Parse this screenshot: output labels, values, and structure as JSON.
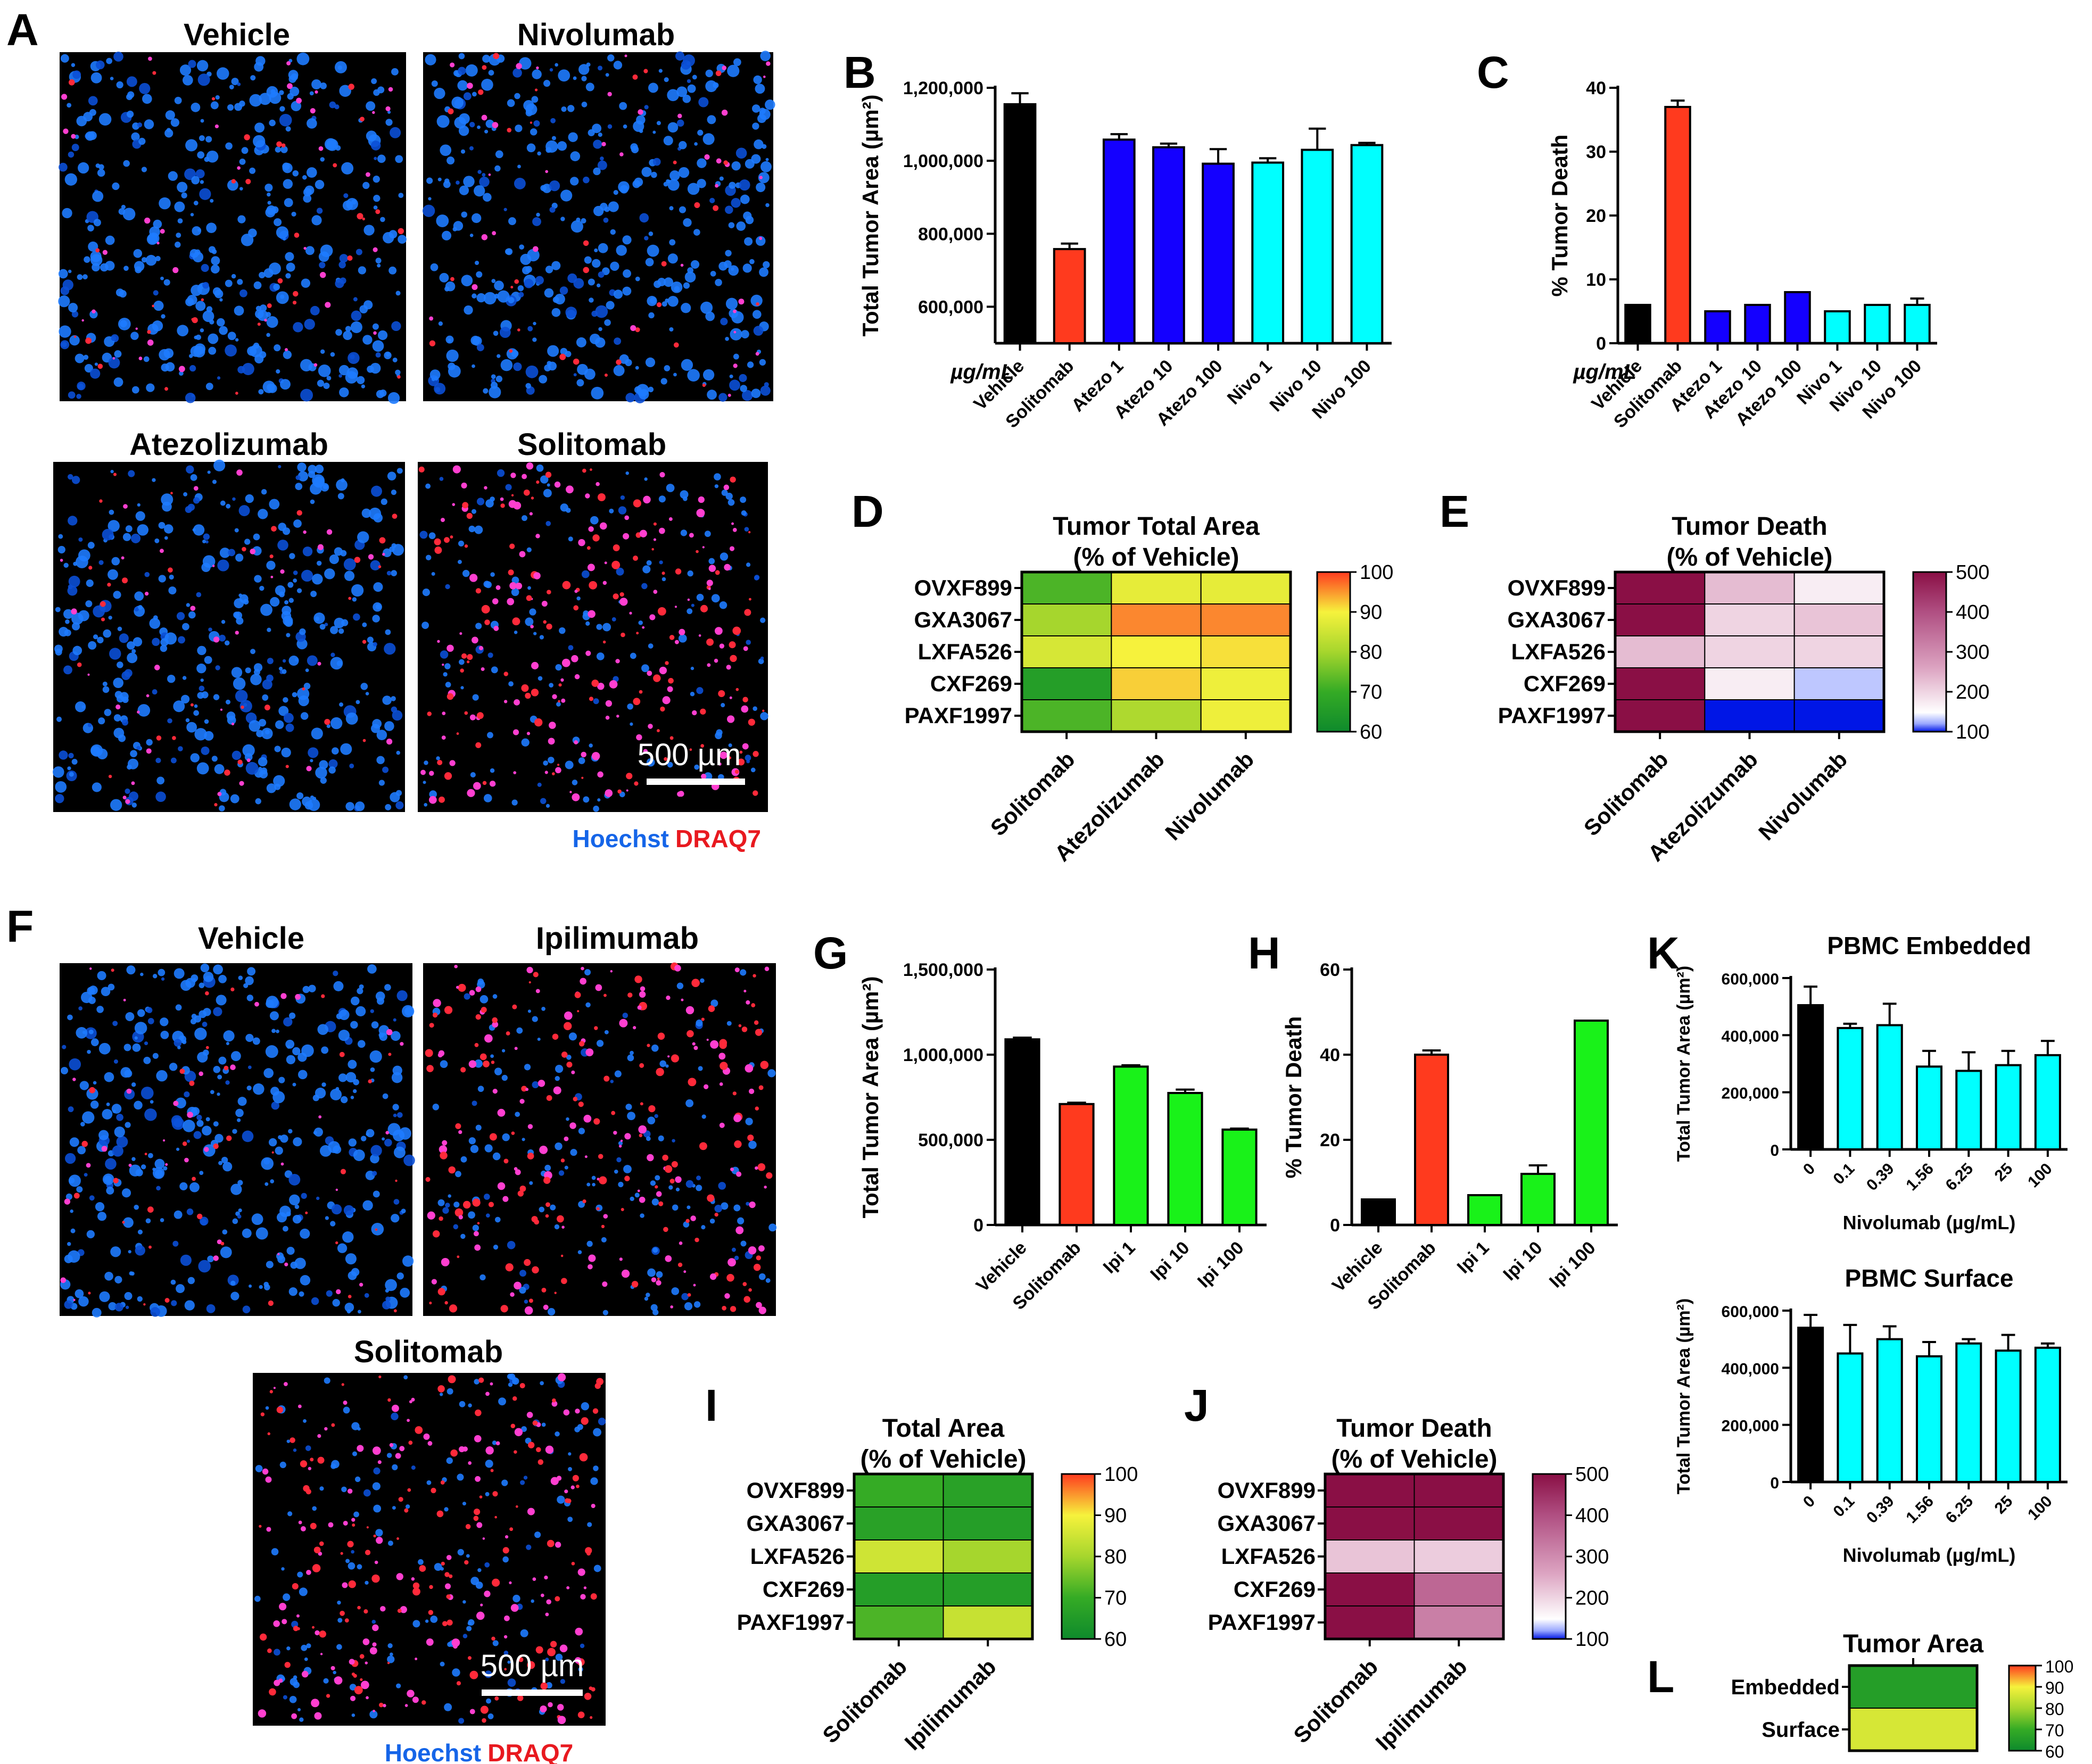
{
  "panel_labels": {
    "A": "A",
    "B": "B",
    "C": "C",
    "D": "D",
    "E": "E",
    "F": "F",
    "G": "G",
    "H": "H",
    "I": "I",
    "J": "J",
    "K": "K",
    "L": "L"
  },
  "images": {
    "a": [
      {
        "title": "Vehicle",
        "density": "low"
      },
      {
        "title": "Nivolumab",
        "density": "low"
      },
      {
        "title": "Atezolizumab",
        "density": "low"
      },
      {
        "title": "Solitomab",
        "density": "high"
      }
    ],
    "f": [
      {
        "title": "Vehicle",
        "density": "low"
      },
      {
        "title": "Ipilimumab",
        "density": "high"
      },
      {
        "title": "Solitomab",
        "density": "high"
      }
    ],
    "scale_bar": "500 µm",
    "legend_hoechst": "Hoechst",
    "legend_draq7": "DRAQ7",
    "hoechst_color": "#1565e8",
    "draq7_color": "#e8191f"
  },
  "unit_label": "µg/mL",
  "chart_data": [
    {
      "id": "B",
      "type": "bar",
      "ylabel": "Total Tumor Area (µm²)",
      "ylim": [
        500000,
        1200000
      ],
      "yticks": [
        600000,
        800000,
        1000000,
        1200000
      ],
      "ytick_labels": [
        "600,000",
        "800,000",
        "1,000,000",
        "1,200,000"
      ],
      "categories": [
        "Vehicle",
        "Solitomab",
        "Atezo 1",
        "Atezo 10",
        "Atezo 100",
        "Nivo 1",
        "Nivo 10",
        "Nivo 100"
      ],
      "values": [
        1155000,
        758000,
        1058000,
        1037000,
        992000,
        995000,
        1030000,
        1043000
      ],
      "errors": [
        30000,
        15000,
        15000,
        10000,
        40000,
        12000,
        58000,
        6000
      ],
      "colors": [
        "#000000",
        "#ff3a1e",
        "#1400ff",
        "#1400ff",
        "#1400ff",
        "#00ffff",
        "#00ffff",
        "#00ffff"
      ]
    },
    {
      "id": "C",
      "type": "bar",
      "ylabel": "% Tumor Death",
      "ylim": [
        0,
        40
      ],
      "yticks": [
        0,
        10,
        20,
        30,
        40
      ],
      "ytick_labels": [
        "0",
        "10",
        "20",
        "30",
        "40"
      ],
      "categories": [
        "Vehicle",
        "Solitomab",
        "Atezo 1",
        "Atezo 10",
        "Atezo 100",
        "Nivo 1",
        "Nivo 10",
        "Nivo 100"
      ],
      "values": [
        6,
        37,
        5,
        6,
        8,
        5,
        6,
        6
      ],
      "errors": [
        0,
        1,
        0,
        0,
        0,
        0,
        0,
        1
      ],
      "colors": [
        "#000000",
        "#ff3a1e",
        "#1400ff",
        "#1400ff",
        "#1400ff",
        "#00ffff",
        "#00ffff",
        "#00ffff"
      ]
    },
    {
      "id": "G",
      "type": "bar",
      "ylabel": "Total Tumor Area (µm²)",
      "ylim": [
        0,
        1500000
      ],
      "yticks": [
        0,
        500000,
        1000000,
        1500000
      ],
      "ytick_labels": [
        "0",
        "500,000",
        "1,000,000",
        "1,500,000"
      ],
      "categories": [
        "Vehicle",
        "Solitomab",
        "Ipi 1",
        "Ipi 10",
        "Ipi 100"
      ],
      "values": [
        1090000,
        710000,
        930000,
        775000,
        560000
      ],
      "errors": [
        10000,
        8000,
        8000,
        20000,
        6000
      ],
      "colors": [
        "#000000",
        "#ff3a1e",
        "#19f219",
        "#19f219",
        "#19f219"
      ]
    },
    {
      "id": "H",
      "type": "bar",
      "ylabel": "% Tumor Death",
      "ylim": [
        0,
        60
      ],
      "yticks": [
        0,
        20,
        40,
        60
      ],
      "ytick_labels": [
        "0",
        "20",
        "40",
        "60"
      ],
      "categories": [
        "Vehicle",
        "Solitomab",
        "Ipi 1",
        "Ipi 10",
        "Ipi 100"
      ],
      "values": [
        6,
        40,
        7,
        12,
        48
      ],
      "errors": [
        0,
        1,
        0,
        2,
        0
      ],
      "colors": [
        "#000000",
        "#ff3a1e",
        "#19f219",
        "#19f219",
        "#19f219"
      ]
    },
    {
      "id": "K1",
      "type": "bar",
      "title": "PBMC Embedded",
      "ylabel": "Total Tumor Area (µm²)",
      "xlabel": "Nivolumab (µg/mL)",
      "ylim": [
        0,
        600000
      ],
      "yticks": [
        0,
        200000,
        400000,
        600000
      ],
      "ytick_labels": [
        "0",
        "200,000",
        "400,000",
        "600,000"
      ],
      "categories": [
        "0",
        "0.1",
        "0.39",
        "1.56",
        "6.25",
        "25",
        "100"
      ],
      "values": [
        505000,
        425000,
        435000,
        290000,
        275000,
        295000,
        330000
      ],
      "errors": [
        65000,
        15000,
        75000,
        55000,
        65000,
        50000,
        50000
      ],
      "colors": [
        "#000000",
        "#00ffff",
        "#00ffff",
        "#00ffff",
        "#00ffff",
        "#00ffff",
        "#00ffff"
      ]
    },
    {
      "id": "K2",
      "type": "bar",
      "title": "PBMC Surface",
      "ylabel": "Total Tumor Area (µm²)",
      "xlabel": "Nivolumab (µg/mL)",
      "ylim": [
        0,
        600000
      ],
      "yticks": [
        0,
        200000,
        400000,
        600000
      ],
      "ytick_labels": [
        "0",
        "200,000",
        "400,000",
        "600,000"
      ],
      "categories": [
        "0",
        "0.1",
        "0.39",
        "1.56",
        "6.25",
        "25",
        "100"
      ],
      "values": [
        540000,
        450000,
        500000,
        440000,
        485000,
        460000,
        470000
      ],
      "errors": [
        45000,
        100000,
        45000,
        50000,
        15000,
        55000,
        15000
      ],
      "colors": [
        "#000000",
        "#00ffff",
        "#00ffff",
        "#00ffff",
        "#00ffff",
        "#00ffff",
        "#00ffff"
      ]
    },
    {
      "id": "D",
      "type": "heatmap",
      "title": "Tumor Total Area",
      "subtitle": "(% of Vehicle)",
      "scale": "area",
      "range": [
        60,
        100
      ],
      "colorbar_ticks": [
        "100",
        "90",
        "80",
        "70",
        "60"
      ],
      "rows": [
        "OVXF899",
        "GXA3067",
        "LXFA526",
        "CXF269",
        "PAXF1997"
      ],
      "columns": [
        "Solitomab",
        "Atezolizumab",
        "Nivolumab"
      ],
      "values": [
        [
          72,
          88,
          88
        ],
        [
          80,
          96,
          96
        ],
        [
          86,
          90,
          91
        ],
        [
          66,
          92,
          89
        ],
        [
          72,
          81,
          89
        ]
      ]
    },
    {
      "id": "E",
      "type": "heatmap",
      "title": "Tumor Death",
      "subtitle": "(% of Vehicle)",
      "scale": "death",
      "range": [
        100,
        500
      ],
      "colorbar_ticks": [
        "500",
        "400",
        "300",
        "200",
        "100"
      ],
      "rows": [
        "OVXF899",
        "GXA3067",
        "LXFA526",
        "CXF269",
        "PAXF1997"
      ],
      "columns": [
        "Solitomab",
        "Atezolizumab",
        "Nivolumab"
      ],
      "values": [
        [
          500,
          230,
          170
        ],
        [
          500,
          200,
          220
        ],
        [
          230,
          200,
          200
        ],
        [
          500,
          170,
          130
        ],
        [
          500,
          60,
          60
        ]
      ]
    },
    {
      "id": "I",
      "type": "heatmap",
      "title": "Total Area",
      "subtitle": "(% of Vehicle)",
      "scale": "area",
      "range": [
        60,
        100
      ],
      "colorbar_ticks": [
        "100",
        "90",
        "80",
        "70",
        "60"
      ],
      "rows": [
        "OVXF899",
        "GXA3067",
        "LXFA526",
        "CXF269",
        "PAXF1997"
      ],
      "columns": [
        "Solitomab",
        "Ipilimumab"
      ],
      "values": [
        [
          70,
          67
        ],
        [
          67,
          66
        ],
        [
          85,
          80
        ],
        [
          66,
          66
        ],
        [
          72,
          84
        ]
      ]
    },
    {
      "id": "J",
      "type": "heatmap",
      "title": "Tumor Death",
      "subtitle": "(% of Vehicle)",
      "scale": "death",
      "range": [
        100,
        500
      ],
      "colorbar_ticks": [
        "500",
        "400",
        "300",
        "200",
        "100"
      ],
      "rows": [
        "OVXF899",
        "GXA3067",
        "LXFA526",
        "CXF269",
        "PAXF1997"
      ],
      "columns": [
        "Solitomab",
        "Ipilimumab"
      ],
      "values": [
        [
          500,
          500
        ],
        [
          500,
          500
        ],
        [
          220,
          210
        ],
        [
          500,
          360
        ],
        [
          500,
          320
        ]
      ]
    },
    {
      "id": "L",
      "type": "heatmap",
      "title": "Tumor Area",
      "scale": "area",
      "range": [
        60,
        100
      ],
      "colorbar_ticks": [
        "100",
        "90",
        "80",
        "70",
        "60"
      ],
      "rows": [
        "Embedded",
        "Surface"
      ],
      "columns": [
        ""
      ],
      "values": [
        [
          66
        ],
        [
          86
        ]
      ]
    }
  ]
}
